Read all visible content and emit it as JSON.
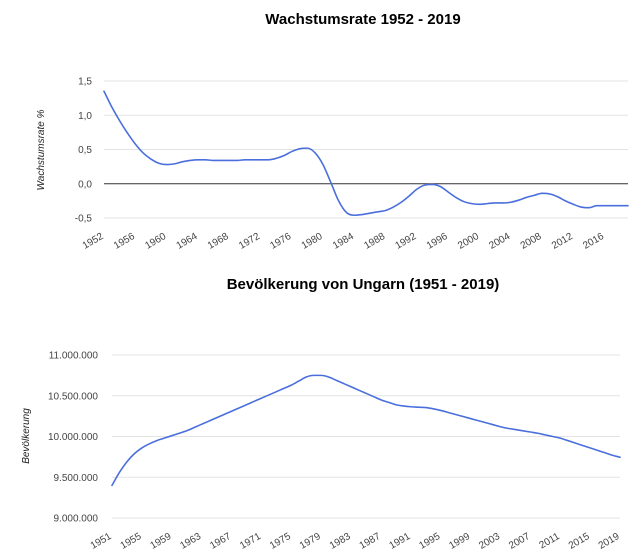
{
  "chart_data": [
    {
      "type": "line",
      "title": "Wachstumsrate 1952 - 2019",
      "xlabel": "",
      "ylabel": "Wachstumsrate %",
      "ylim": [
        -0.5,
        1.5
      ],
      "yticks": [
        "1,5",
        "1,0",
        "0,5",
        "0,0",
        "-0,5"
      ],
      "ytick_values": [
        1.5,
        1.0,
        0.5,
        0.0,
        -0.5
      ],
      "xticks": [
        "1952",
        "1956",
        "1960",
        "1964",
        "1968",
        "1972",
        "1976",
        "1980",
        "1984",
        "1988",
        "1992",
        "1996",
        "2000",
        "2004",
        "2008",
        "2012",
        "2016"
      ],
      "xlim": [
        1952,
        2019
      ],
      "grid": true,
      "legend": "none",
      "color": "#4a6fdc",
      "series": [
        {
          "x": [
            1952,
            1953,
            1954,
            1955,
            1956,
            1957,
            1958,
            1959,
            1960,
            1961,
            1962,
            1963,
            1964,
            1965,
            1966,
            1967,
            1968,
            1969,
            1970,
            1971,
            1972,
            1973,
            1974,
            1975,
            1976,
            1977,
            1978,
            1979,
            1980,
            1981,
            1982,
            1983,
            1984,
            1985,
            1986,
            1987,
            1988,
            1989,
            1990,
            1991,
            1992,
            1993,
            1994,
            1995,
            1996,
            1997,
            1998,
            1999,
            2000,
            2001,
            2002,
            2003,
            2004,
            2005,
            2006,
            2007,
            2008,
            2009,
            2010,
            2011,
            2012,
            2013,
            2014,
            2015,
            2016,
            2017,
            2018,
            2019
          ],
          "values": [
            1.35,
            1.12,
            0.92,
            0.74,
            0.58,
            0.45,
            0.36,
            0.3,
            0.28,
            0.29,
            0.32,
            0.34,
            0.35,
            0.35,
            0.34,
            0.34,
            0.34,
            0.34,
            0.35,
            0.35,
            0.35,
            0.35,
            0.37,
            0.41,
            0.47,
            0.51,
            0.52,
            0.45,
            0.28,
            0.02,
            -0.25,
            -0.42,
            -0.46,
            -0.45,
            -0.43,
            -0.41,
            -0.39,
            -0.34,
            -0.27,
            -0.18,
            -0.08,
            -0.02,
            -0.01,
            -0.04,
            -0.12,
            -0.2,
            -0.26,
            -0.29,
            -0.3,
            -0.29,
            -0.28,
            -0.28,
            -0.27,
            -0.24,
            -0.2,
            -0.17,
            -0.14,
            -0.15,
            -0.19,
            -0.25,
            -0.3,
            -0.34,
            -0.35,
            -0.32,
            -0.32,
            -0.32,
            -0.32,
            -0.32
          ]
        }
      ]
    },
    {
      "type": "line",
      "title": "Bevölkerung von Ungarn (1951 - 2019)",
      "xlabel": "",
      "ylabel": "Bevölkerung",
      "ylim": [
        9000000,
        11000000
      ],
      "yticks": [
        "11.000.000",
        "10.500.000",
        "10.000.000",
        "9.500.000",
        "9.000.000"
      ],
      "ytick_values": [
        11000000,
        10500000,
        10000000,
        9500000,
        9000000
      ],
      "xticks": [
        "1951",
        "1955",
        "1959",
        "1963",
        "1967",
        "1971",
        "1975",
        "1979",
        "1983",
        "1987",
        "1991",
        "1995",
        "1999",
        "2003",
        "2007",
        "2011",
        "2015",
        "2019"
      ],
      "xlim": [
        1951,
        2019
      ],
      "grid": true,
      "legend": "none",
      "color": "#4a6fdc",
      "series": [
        {
          "x": [
            1951,
            1952,
            1953,
            1954,
            1955,
            1956,
            1957,
            1958,
            1959,
            1960,
            1961,
            1962,
            1963,
            1964,
            1965,
            1966,
            1967,
            1968,
            1969,
            1970,
            1971,
            1972,
            1973,
            1974,
            1975,
            1976,
            1977,
            1978,
            1979,
            1980,
            1981,
            1982,
            1983,
            1984,
            1985,
            1986,
            1987,
            1988,
            1989,
            1990,
            1991,
            1992,
            1993,
            1994,
            1995,
            1996,
            1997,
            1998,
            1999,
            2000,
            2001,
            2002,
            2003,
            2004,
            2005,
            2006,
            2007,
            2008,
            2009,
            2010,
            2011,
            2012,
            2013,
            2014,
            2015,
            2016,
            2017,
            2018,
            2019
          ],
          "values": [
            9400000,
            9560000,
            9690000,
            9790000,
            9860000,
            9910000,
            9950000,
            9980000,
            10010000,
            10040000,
            10070000,
            10110000,
            10150000,
            10190000,
            10230000,
            10270000,
            10310000,
            10350000,
            10390000,
            10430000,
            10470000,
            10510000,
            10550000,
            10590000,
            10630000,
            10680000,
            10730000,
            10750000,
            10750000,
            10730000,
            10690000,
            10650000,
            10610000,
            10570000,
            10530000,
            10490000,
            10450000,
            10420000,
            10390000,
            10375000,
            10365000,
            10360000,
            10355000,
            10340000,
            10320000,
            10295000,
            10270000,
            10245000,
            10220000,
            10195000,
            10170000,
            10145000,
            10120000,
            10100000,
            10085000,
            10070000,
            10055000,
            10040000,
            10020000,
            10000000,
            9980000,
            9950000,
            9920000,
            9890000,
            9860000,
            9830000,
            9800000,
            9770000,
            9745000
          ]
        }
      ]
    }
  ]
}
